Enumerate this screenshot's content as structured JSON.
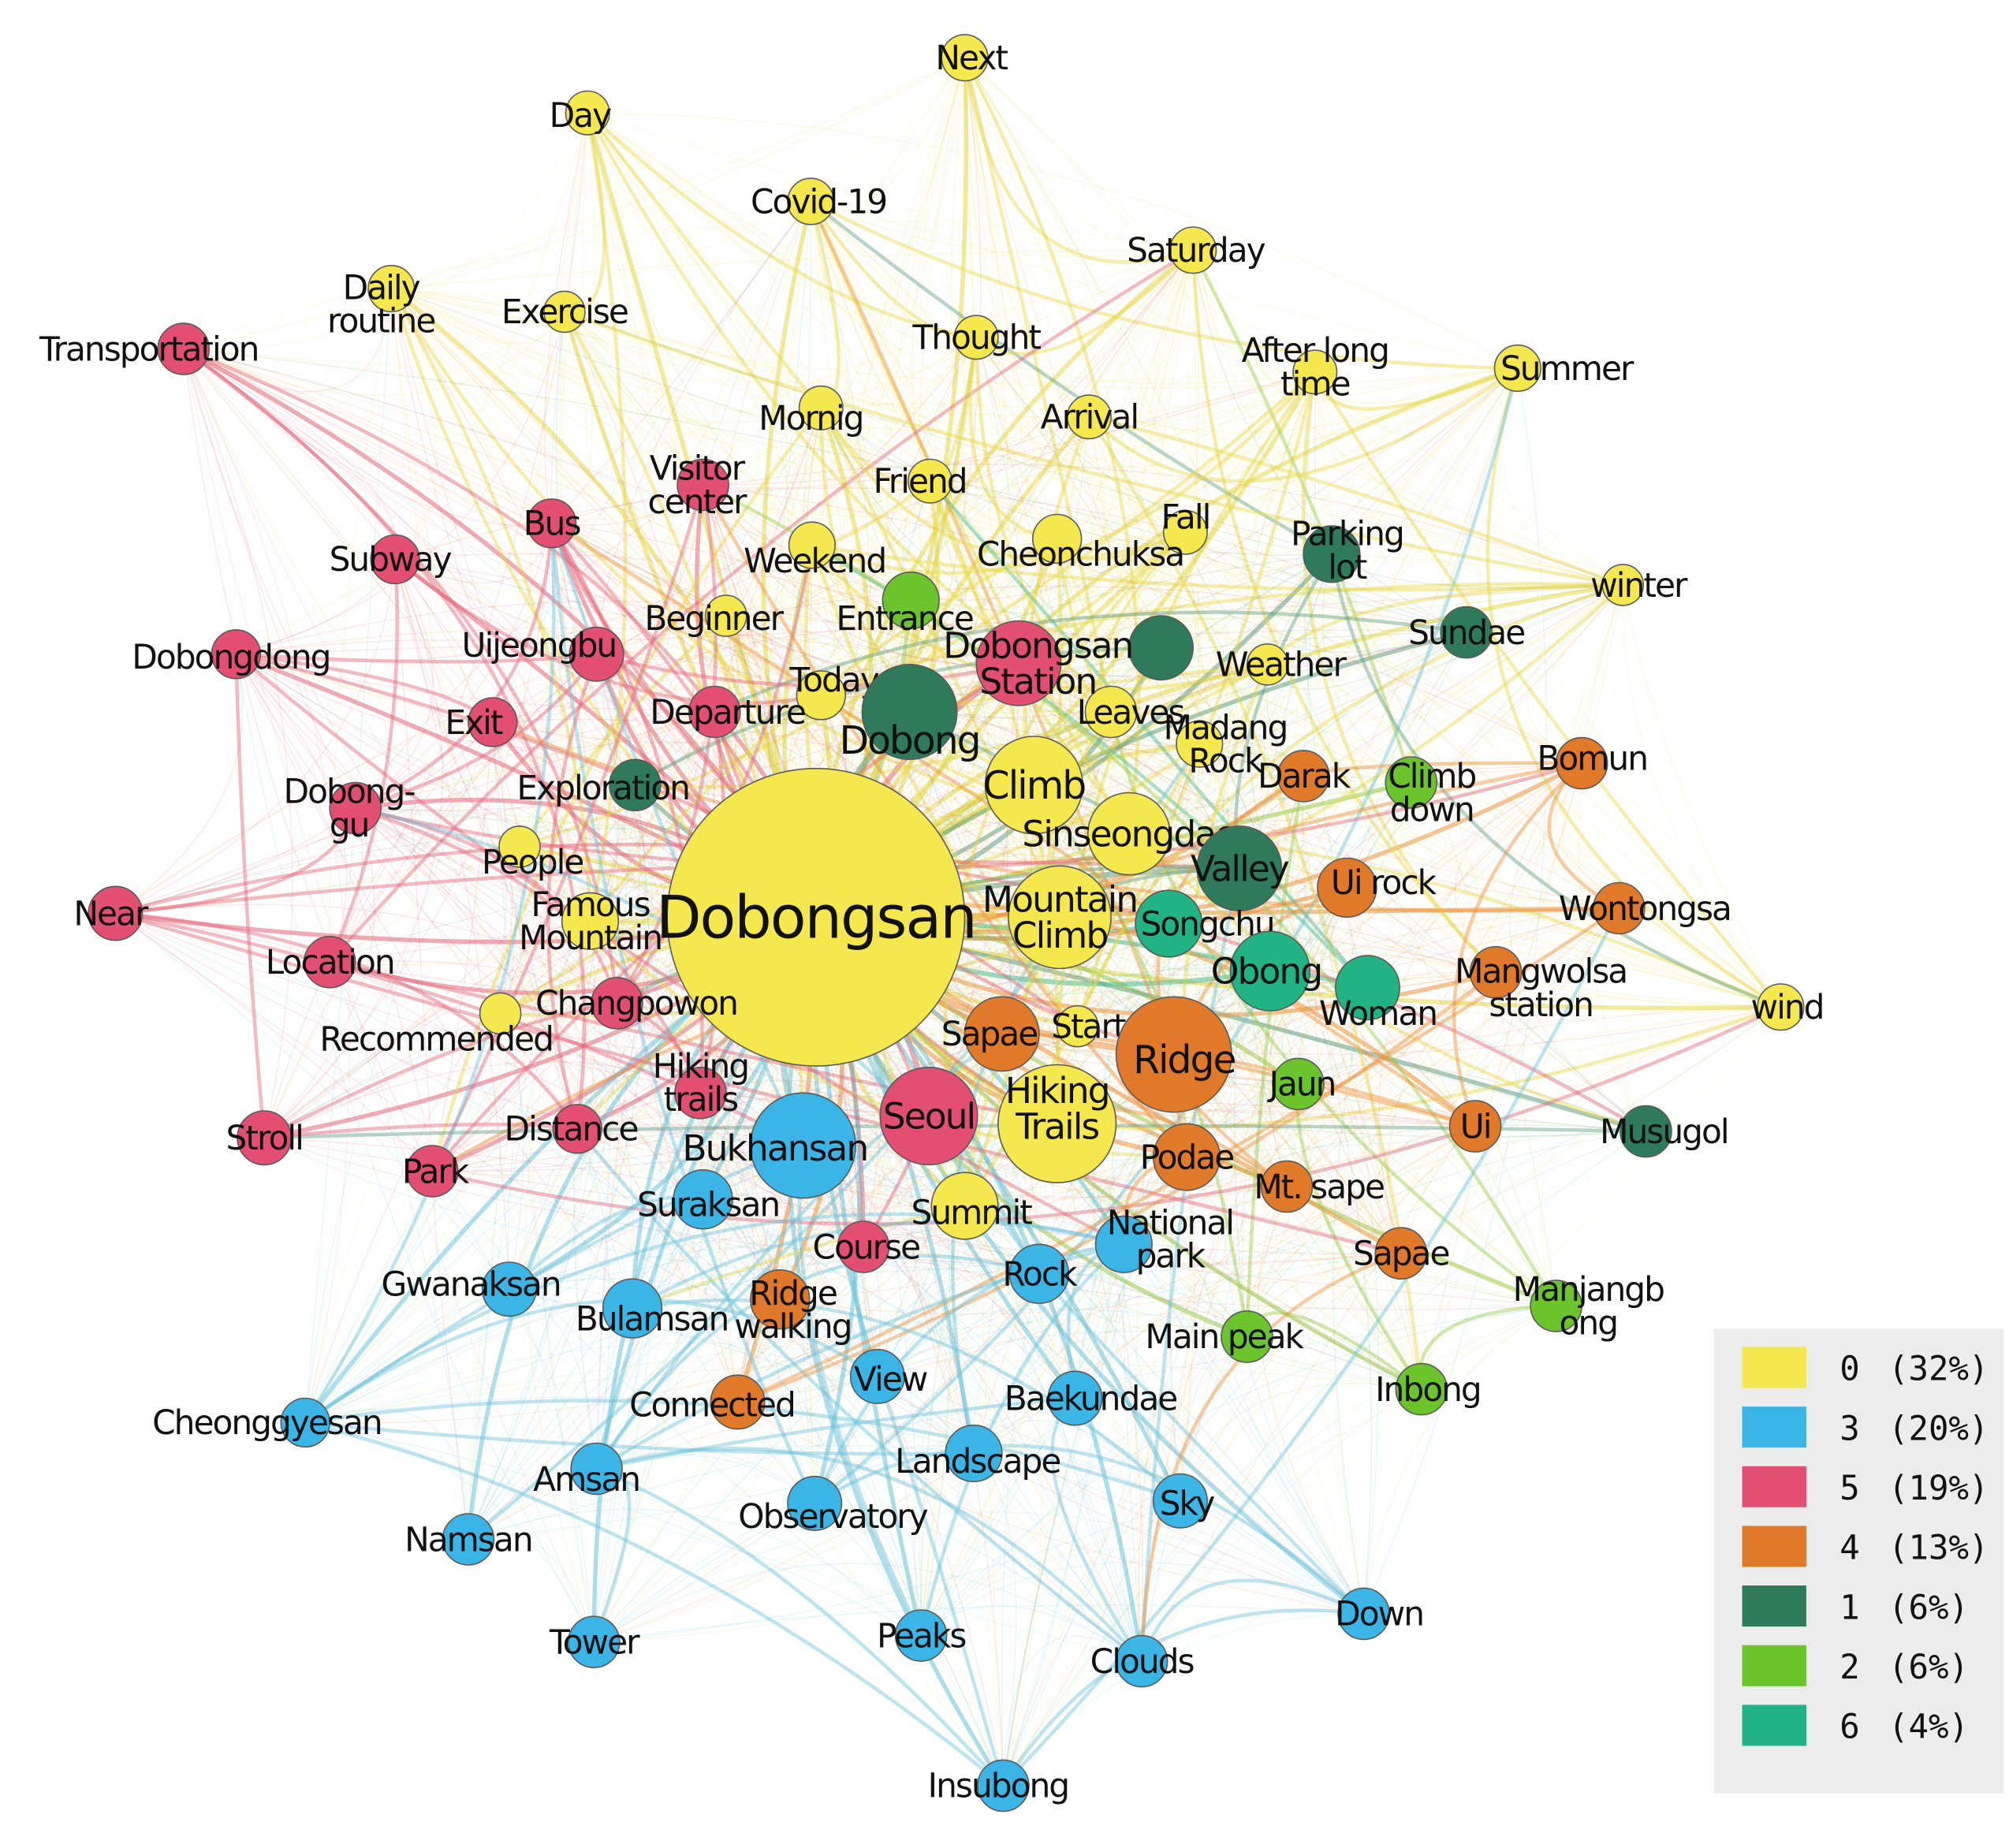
{
  "palette": {
    "0": "#f5e84e",
    "1": "#2e7a5b",
    "2": "#6cc42c",
    "3": "#3bb4e6",
    "4": "#e07a2a",
    "5": "#e24f72",
    "6": "#22b384"
  },
  "edge_colors": {
    "0": "#e8d94a",
    "1": "#5f9f84",
    "2": "#9ccc4a",
    "3": "#6cc4dc",
    "4": "#f0913a",
    "5": "#e5667a",
    "6": "#3fbf95"
  },
  "legend": [
    {
      "community": "0",
      "label": "0",
      "share": "(32%)"
    },
    {
      "community": "3",
      "label": "3",
      "share": "(20%)"
    },
    {
      "community": "5",
      "label": "5",
      "share": "(19%)"
    },
    {
      "community": "4",
      "label": "4",
      "share": "(13%)"
    },
    {
      "community": "1",
      "label": "1",
      "share": "(6%)"
    },
    {
      "community": "2",
      "label": "2",
      "share": "(6%)"
    },
    {
      "community": "6",
      "label": "6",
      "share": "(4%)"
    }
  ],
  "nodes": [
    {
      "id": "dobongsan",
      "lines": [
        "Dobongsan"
      ],
      "community": "0",
      "weight": 100
    },
    {
      "id": "next",
      "lines": [
        "Next"
      ],
      "community": "0",
      "weight": 3
    },
    {
      "id": "day",
      "lines": [
        "Day"
      ],
      "community": "0",
      "weight": 3
    },
    {
      "id": "covid-19",
      "lines": [
        "Covid-19"
      ],
      "community": "0",
      "weight": 3
    },
    {
      "id": "saturday",
      "lines": [
        "Saturday"
      ],
      "community": "0",
      "weight": 3
    },
    {
      "id": "daily-routine",
      "lines": [
        "Daily",
        "routine"
      ],
      "community": "0",
      "weight": 3
    },
    {
      "id": "exercise",
      "lines": [
        "Exercise"
      ],
      "community": "0",
      "weight": 3
    },
    {
      "id": "thought",
      "lines": [
        "Thought"
      ],
      "community": "0",
      "weight": 3
    },
    {
      "id": "after-long-time",
      "lines": [
        "After long",
        "time"
      ],
      "community": "0",
      "weight": 3
    },
    {
      "id": "summer",
      "lines": [
        "Summer"
      ],
      "community": "0",
      "weight": 3
    },
    {
      "id": "mornig",
      "lines": [
        "Mornig"
      ],
      "community": "0",
      "weight": 3
    },
    {
      "id": "arrival",
      "lines": [
        "Arrival"
      ],
      "community": "0",
      "weight": 3
    },
    {
      "id": "friend",
      "lines": [
        "Friend"
      ],
      "community": "0",
      "weight": 3
    },
    {
      "id": "fall",
      "lines": [
        "Fall"
      ],
      "community": "0",
      "weight": 3
    },
    {
      "id": "weekend",
      "lines": [
        "Weekend"
      ],
      "community": "0",
      "weight": 3
    },
    {
      "id": "cheonchuksa",
      "lines": [
        "Cheonchuksa"
      ],
      "community": "0",
      "weight": 3
    },
    {
      "id": "winter",
      "lines": [
        "winter"
      ],
      "community": "0",
      "weight": 3
    },
    {
      "id": "beginner",
      "lines": [
        "Beginner"
      ],
      "community": "0",
      "weight": 3
    },
    {
      "id": "weather",
      "lines": [
        "Weather"
      ],
      "community": "0",
      "weight": 3
    },
    {
      "id": "today",
      "lines": [
        "Today"
      ],
      "community": "0",
      "weight": 3
    },
    {
      "id": "leaves",
      "lines": [
        "Leaves"
      ],
      "community": "0",
      "weight": 3
    },
    {
      "id": "madang-rock",
      "lines": [
        "Madang",
        "Rock"
      ],
      "community": "0",
      "weight": 3
    },
    {
      "id": "climb",
      "lines": [
        "Climb"
      ],
      "community": "0",
      "weight": 8
    },
    {
      "id": "sinseongdae",
      "lines": [
        "Sinseongdae"
      ],
      "community": "0",
      "weight": 6
    },
    {
      "id": "people",
      "lines": [
        "People"
      ],
      "community": "0",
      "weight": 3
    },
    {
      "id": "famous-mountain",
      "lines": [
        "Famous",
        "Mountain"
      ],
      "community": "0",
      "weight": 3
    },
    {
      "id": "mountain-climb",
      "lines": [
        "Mountain",
        "Climb"
      ],
      "community": "0",
      "weight": 6
    },
    {
      "id": "recommended",
      "lines": [
        "Recommended"
      ],
      "community": "0",
      "weight": 3
    },
    {
      "id": "start",
      "lines": [
        "Start"
      ],
      "community": "0",
      "weight": 3
    },
    {
      "id": "hiking-trails-big",
      "lines": [
        "Hiking",
        "Trails"
      ],
      "community": "0",
      "weight": 7
    },
    {
      "id": "summit",
      "lines": [
        "Summit"
      ],
      "community": "0",
      "weight": 3
    },
    {
      "id": "wind",
      "lines": [
        "wind"
      ],
      "community": "0",
      "weight": 3
    },
    {
      "id": "entrance",
      "lines": [
        "Entrance"
      ],
      "community": "2",
      "weight": 3
    },
    {
      "id": "climb-down",
      "lines": [
        "Climb",
        "down"
      ],
      "community": "2",
      "weight": 3
    },
    {
      "id": "jaun",
      "lines": [
        "Jaun"
      ],
      "community": "2",
      "weight": 3
    },
    {
      "id": "main-peak",
      "lines": [
        "Main peak"
      ],
      "community": "2",
      "weight": 3
    },
    {
      "id": "manjangbong",
      "lines": [
        "Manjangb",
        "ong"
      ],
      "community": "2",
      "weight": 3
    },
    {
      "id": "inbong",
      "lines": [
        "Inbong"
      ],
      "community": "2",
      "weight": 3
    },
    {
      "id": "parking-lot",
      "lines": [
        "Parking",
        "lot"
      ],
      "community": "1",
      "weight": 3
    },
    {
      "id": "sundae",
      "lines": [
        "Sundae"
      ],
      "community": "1",
      "weight": 3
    },
    {
      "id": "dobongsan-station-node",
      "lines": [
        ""
      ],
      "community": "1",
      "weight": 4
    },
    {
      "id": "dobong",
      "lines": [
        "Dobong"
      ],
      "community": "1",
      "weight": 9
    },
    {
      "id": "exploration",
      "lines": [
        "Exploration"
      ],
      "community": "1",
      "weight": 3
    },
    {
      "id": "valley",
      "lines": [
        "Valley"
      ],
      "community": "1",
      "weight": 6
    },
    {
      "id": "musugol",
      "lines": [
        "Musugol"
      ],
      "community": "1",
      "weight": 3
    },
    {
      "id": "songchu",
      "lines": [
        "Songchu"
      ],
      "community": "6",
      "weight": 3
    },
    {
      "id": "obong",
      "lines": [
        "Obong"
      ],
      "community": "6",
      "weight": 4
    },
    {
      "id": "woman",
      "lines": [
        "Woman"
      ],
      "community": "6",
      "weight": 3
    },
    {
      "id": "transportation",
      "lines": [
        "Transportation"
      ],
      "community": "5",
      "weight": 3
    },
    {
      "id": "visitor-center",
      "lines": [
        "Visitor",
        "center"
      ],
      "community": "5",
      "weight": 3
    },
    {
      "id": "bus",
      "lines": [
        "Bus"
      ],
      "community": "5",
      "weight": 3
    },
    {
      "id": "subway",
      "lines": [
        "Subway"
      ],
      "community": "5",
      "weight": 3
    },
    {
      "id": "dobongdong",
      "lines": [
        "Dobongdong"
      ],
      "community": "5",
      "weight": 3
    },
    {
      "id": "uijeongbu",
      "lines": [
        "Uijeongbu"
      ],
      "community": "5",
      "weight": 3
    },
    {
      "id": "dobongsan-station",
      "lines": [
        "Dobongsan",
        "Station"
      ],
      "community": "5",
      "weight": 5
    },
    {
      "id": "exit",
      "lines": [
        "Exit"
      ],
      "community": "5",
      "weight": 3
    },
    {
      "id": "departure",
      "lines": [
        "Departure"
      ],
      "community": "5",
      "weight": 3
    },
    {
      "id": "dobong-gu",
      "lines": [
        "Dobong-",
        "gu"
      ],
      "community": "5",
      "weight": 3
    },
    {
      "id": "near",
      "lines": [
        "Near"
      ],
      "community": "5",
      "weight": 3
    },
    {
      "id": "location",
      "lines": [
        "Location"
      ],
      "community": "5",
      "weight": 3
    },
    {
      "id": "changpowon",
      "lines": [
        "Changpowon"
      ],
      "community": "5",
      "weight": 3
    },
    {
      "id": "hiking-trails-small",
      "lines": [
        "Hiking",
        "trails"
      ],
      "community": "5",
      "weight": 3
    },
    {
      "id": "seoul",
      "lines": [
        "Seoul"
      ],
      "community": "5",
      "weight": 6
    },
    {
      "id": "stroll",
      "lines": [
        "Stroll"
      ],
      "community": "5",
      "weight": 3
    },
    {
      "id": "distance",
      "lines": [
        "Distance"
      ],
      "community": "5",
      "weight": 3
    },
    {
      "id": "park",
      "lines": [
        "Park"
      ],
      "community": "5",
      "weight": 3
    },
    {
      "id": "course",
      "lines": [
        "Course"
      ],
      "community": "5",
      "weight": 3
    },
    {
      "id": "bomun",
      "lines": [
        "Bomun"
      ],
      "community": "4",
      "weight": 3
    },
    {
      "id": "darak",
      "lines": [
        "Darak"
      ],
      "community": "4",
      "weight": 3
    },
    {
      "id": "ui-rock",
      "lines": [
        "Ui rock"
      ],
      "community": "4",
      "weight": 3
    },
    {
      "id": "wontongsa",
      "lines": [
        "Wontongsa"
      ],
      "community": "4",
      "weight": 3
    },
    {
      "id": "mangwolsa-station",
      "lines": [
        "Mangwolsa",
        "station"
      ],
      "community": "4",
      "weight": 3
    },
    {
      "id": "sapae",
      "lines": [
        "Sapae"
      ],
      "community": "4",
      "weight": 4
    },
    {
      "id": "ridge",
      "lines": [
        "Ridge"
      ],
      "community": "4",
      "weight": 8
    },
    {
      "id": "ui",
      "lines": [
        "Ui"
      ],
      "community": "4",
      "weight": 3
    },
    {
      "id": "podae",
      "lines": [
        "Podae"
      ],
      "community": "4",
      "weight": 4
    },
    {
      "id": "mt-sape",
      "lines": [
        "Mt. sape"
      ],
      "community": "4",
      "weight": 3
    },
    {
      "id": "sapae-2",
      "lines": [
        "Sapae"
      ],
      "community": "4",
      "weight": 3
    },
    {
      "id": "ridge-walking",
      "lines": [
        "Ridge",
        "walking"
      ],
      "community": "4",
      "weight": 3
    },
    {
      "id": "connected",
      "lines": [
        "Connected"
      ],
      "community": "4",
      "weight": 3
    },
    {
      "id": "bukhansan",
      "lines": [
        "Bukhansan"
      ],
      "community": "3",
      "weight": 9
    },
    {
      "id": "suraksan",
      "lines": [
        "Suraksan"
      ],
      "community": "3",
      "weight": 3
    },
    {
      "id": "national-park",
      "lines": [
        "National",
        "park"
      ],
      "community": "3",
      "weight": 3
    },
    {
      "id": "rock",
      "lines": [
        "Rock"
      ],
      "community": "3",
      "weight": 3
    },
    {
      "id": "gwanaksan",
      "lines": [
        "Gwanaksan"
      ],
      "community": "3",
      "weight": 3
    },
    {
      "id": "bulamsan",
      "lines": [
        "Bulamsan"
      ],
      "community": "3",
      "weight": 3
    },
    {
      "id": "view",
      "lines": [
        "View"
      ],
      "community": "3",
      "weight": 3
    },
    {
      "id": "baekundae",
      "lines": [
        "Baekundae"
      ],
      "community": "3",
      "weight": 3
    },
    {
      "id": "cheonggyesan",
      "lines": [
        "Cheonggyesan"
      ],
      "community": "3",
      "weight": 3
    },
    {
      "id": "landscape",
      "lines": [
        "Landscape"
      ],
      "community": "3",
      "weight": 3
    },
    {
      "id": "amsan",
      "lines": [
        "Amsan"
      ],
      "community": "3",
      "weight": 3
    },
    {
      "id": "observatory",
      "lines": [
        "Observatory"
      ],
      "community": "3",
      "weight": 3
    },
    {
      "id": "sky",
      "lines": [
        "Sky"
      ],
      "community": "3",
      "weight": 3
    },
    {
      "id": "namsan",
      "lines": [
        "Namsan"
      ],
      "community": "3",
      "weight": 3
    },
    {
      "id": "down",
      "lines": [
        "Down"
      ],
      "community": "3",
      "weight": 3
    },
    {
      "id": "tower",
      "lines": [
        "Tower"
      ],
      "community": "3",
      "weight": 3
    },
    {
      "id": "peaks",
      "lines": [
        "Peaks"
      ],
      "community": "3",
      "weight": 3
    },
    {
      "id": "clouds",
      "lines": [
        "Clouds"
      ],
      "community": "3",
      "weight": 3
    },
    {
      "id": "insubong",
      "lines": [
        "Insubong"
      ],
      "community": "3",
      "weight": 3
    }
  ]
}
